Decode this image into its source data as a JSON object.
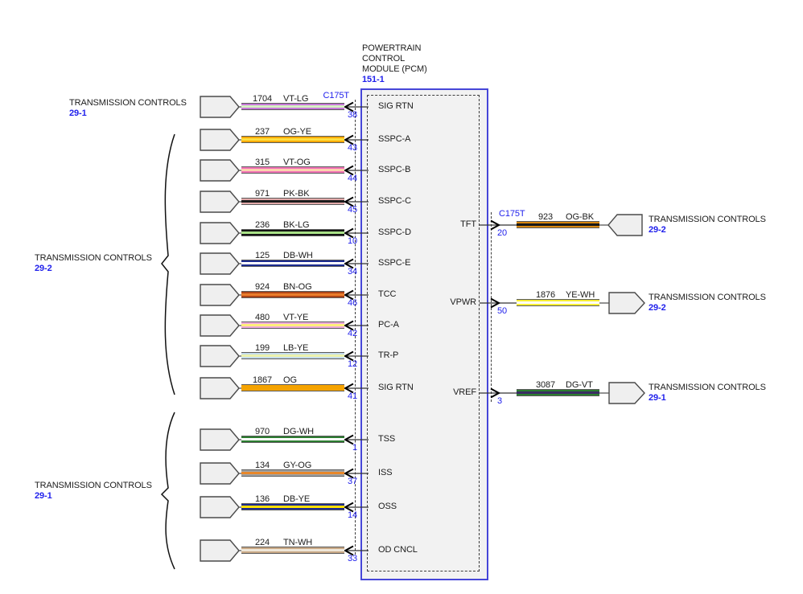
{
  "pcm": {
    "title_lines": [
      "POWERTRAIN",
      "CONTROL",
      "MODULE (PCM)"
    ],
    "ref": "151-1"
  },
  "connector_label": "C175T",
  "left_groups": [
    {
      "label": "TRANSMISSION CONTROLS",
      "ref": "29-1"
    },
    {
      "label": "TRANSMISSION CONTROLS",
      "ref": "29-2"
    },
    {
      "label": "TRANSMISSION CONTROLS",
      "ref": "29-1"
    }
  ],
  "left_wires": [
    {
      "circuit": "1704",
      "color_code": "VT-LG",
      "pin": "38",
      "pin_label": "SIG RTN",
      "connector": "C175T",
      "main": "#c678d8",
      "stripe": "#d6f0c4"
    },
    {
      "circuit": "237",
      "color_code": "OG-YE",
      "pin": "43",
      "pin_label": "SSPC-A",
      "main": "#f5a800",
      "stripe": "#ffdf40"
    },
    {
      "circuit": "315",
      "color_code": "VT-OG",
      "pin": "44",
      "pin_label": "SSPC-B",
      "main": "#f173b6",
      "stripe": "#fcd2ae"
    },
    {
      "circuit": "971",
      "color_code": "PK-BK",
      "pin": "45",
      "pin_label": "SSPC-C",
      "main": "#e2a9a9",
      "stripe": "#1c1c1c"
    },
    {
      "circuit": "236",
      "color_code": "BK-LG",
      "pin": "10",
      "pin_label": "SSPC-D",
      "main": "#141414",
      "stripe": "#a9e287"
    },
    {
      "circuit": "125",
      "color_code": "DB-WH",
      "pin": "34",
      "pin_label": "SSPC-E",
      "main": "#1c2b8f",
      "stripe": "#ffffff"
    },
    {
      "circuit": "924",
      "color_code": "BN-OG",
      "pin": "46",
      "pin_label": "TCC",
      "main": "#ad4517",
      "stripe": "#ea7d2b"
    },
    {
      "circuit": "480",
      "color_code": "VT-YE",
      "pin": "42",
      "pin_label": "PC-A",
      "main": "#efaade",
      "stripe": "#ffef7a"
    },
    {
      "circuit": "199",
      "color_code": "LB-YE",
      "pin": "12",
      "pin_label": "TR-P",
      "main": "#c4dcec",
      "stripe": "#ecf2ae"
    },
    {
      "circuit": "1867",
      "color_code": "OG",
      "pin": "41",
      "pin_label": "SIG RTN",
      "main": "#f5a300",
      "stripe": "#f5a300"
    },
    {
      "circuit": "970",
      "color_code": "DG-WH",
      "pin": "1",
      "pin_label": "TSS",
      "main": "#2c7d30",
      "stripe": "#ffffff"
    },
    {
      "circuit": "134",
      "color_code": "GY-OG",
      "pin": "37",
      "pin_label": "ISS",
      "main": "#a3a3a3",
      "stripe": "#e8872a"
    },
    {
      "circuit": "136",
      "color_code": "DB-YE",
      "pin": "14",
      "pin_label": "OSS",
      "main": "#1c2b8f",
      "stripe": "#ffdf00"
    },
    {
      "circuit": "224",
      "color_code": "TN-WH",
      "pin": "33",
      "pin_label": "OD CNCL",
      "main": "#c9a986",
      "stripe": "#efe6d8"
    }
  ],
  "right_wires": [
    {
      "pin_label": "TFT",
      "pin": "20",
      "connector": "C175T",
      "circuit": "923",
      "color_code": "OG-BK",
      "dest_label": "TRANSMISSION CONTROLS",
      "dest_ref": "29-2",
      "main": "#d8860e",
      "stripe": "#171717",
      "connector_dir": "left"
    },
    {
      "pin_label": "VPWR",
      "pin": "50",
      "circuit": "1876",
      "color_code": "YE-WH",
      "dest_label": "TRANSMISSION CONTROLS",
      "dest_ref": "29-2",
      "main": "#f6ee35",
      "stripe": "#ffffff",
      "connector_dir": "right"
    },
    {
      "pin_label": "VREF",
      "pin": "3",
      "circuit": "3087",
      "color_code": "DG-VT",
      "dest_label": "TRANSMISSION CONTROLS",
      "dest_ref": "29-1",
      "main": "#2c7d30",
      "stripe": "#3a2d63",
      "connector_dir": "right"
    }
  ]
}
